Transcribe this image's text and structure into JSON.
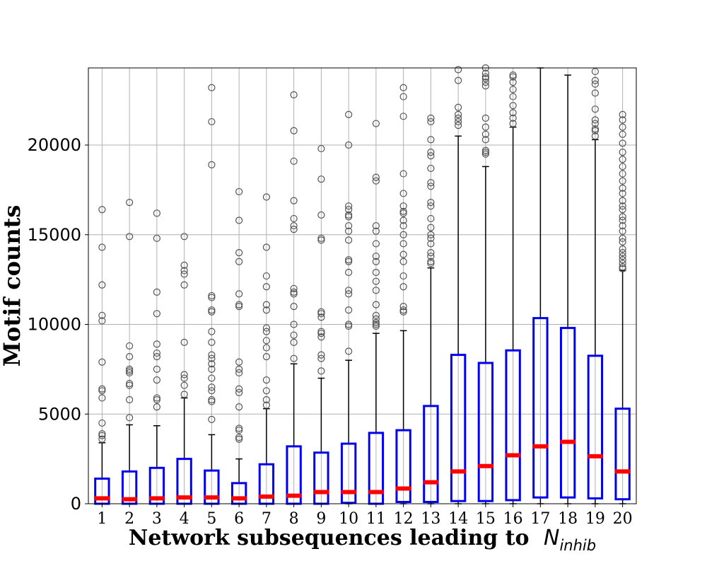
{
  "chart_data": {
    "type": "box",
    "title": "",
    "xlabel": "Network subsequences leading to",
    "xlabel_math": "N",
    "xlabel_subscript": "inhib",
    "ylabel": "Motif counts",
    "ylim": [
      0,
      24300
    ],
    "y_ticks": [
      0,
      5000,
      10000,
      15000,
      20000
    ],
    "y_tick_labels": [
      "0",
      "5000",
      "10000",
      "15000",
      "20000"
    ],
    "grid": true,
    "categories": [
      "1",
      "2",
      "3",
      "4",
      "5",
      "6",
      "7",
      "8",
      "9",
      "10",
      "11",
      "12",
      "13",
      "14",
      "15",
      "16",
      "17",
      "18",
      "19",
      "20"
    ],
    "colors": {
      "box": "#0000ee",
      "median": "#ff0000",
      "whisker": "#000000",
      "flier": "#555555",
      "grid": "#b0b0b0"
    },
    "boxes": [
      {
        "q1": 0,
        "median": 300,
        "q3": 1400,
        "whisker_low": 0,
        "whisker_high": 3400,
        "fliers": [
          3600,
          3800,
          3900,
          4500,
          5900,
          6300,
          6400,
          7900,
          10200,
          10500,
          12200,
          14300,
          16400
        ]
      },
      {
        "q1": 0,
        "median": 250,
        "q3": 1800,
        "whisker_low": 0,
        "whisker_high": 4400,
        "fliers": [
          4800,
          5800,
          6600,
          6700,
          7300,
          7400,
          7500,
          8200,
          8800,
          14900,
          16800
        ]
      },
      {
        "q1": 0,
        "median": 300,
        "q3": 2000,
        "whisker_low": 0,
        "whisker_high": 4350,
        "fliers": [
          5400,
          5800,
          5900,
          6900,
          7500,
          8200,
          8400,
          8900,
          10600,
          11800,
          14800,
          16200
        ]
      },
      {
        "q1": 0,
        "median": 350,
        "q3": 2500,
        "whisker_low": 0,
        "whisker_high": 5900,
        "fliers": [
          6100,
          6600,
          7000,
          7200,
          9000,
          12200,
          12800,
          13000,
          13300,
          14900
        ]
      },
      {
        "q1": 0,
        "median": 350,
        "q3": 1850,
        "whisker_low": 0,
        "whisker_high": 3850,
        "fliers": [
          4700,
          5700,
          5800,
          6300,
          6500,
          7000,
          7500,
          7800,
          8100,
          8300,
          9000,
          9600,
          10700,
          10800,
          11500,
          11600,
          18900,
          21300,
          23200
        ]
      },
      {
        "q1": 0,
        "median": 300,
        "q3": 1150,
        "whisker_low": 0,
        "whisker_high": 2500,
        "fliers": [
          3600,
          3700,
          4100,
          4200,
          5400,
          6200,
          6400,
          7300,
          7500,
          7900,
          11000,
          11100,
          11700,
          13500,
          14000,
          15800,
          17400
        ]
      },
      {
        "q1": 0,
        "median": 400,
        "q3": 2200,
        "whisker_low": 0,
        "whisker_high": 5300,
        "fliers": [
          5500,
          5800,
          6300,
          6900,
          8200,
          8700,
          9100,
          9600,
          9800,
          10800,
          11100,
          12100,
          12700,
          14300,
          17100
        ]
      },
      {
        "q1": 0,
        "median": 450,
        "q3": 3200,
        "whisker_low": 0,
        "whisker_high": 7800,
        "fliers": [
          8100,
          9000,
          9400,
          10000,
          11000,
          11700,
          11800,
          12000,
          15300,
          15500,
          15900,
          16900,
          19100,
          20800,
          22800
        ]
      },
      {
        "q1": 0,
        "median": 650,
        "q3": 2850,
        "whisker_low": 0,
        "whisker_high": 7000,
        "fliers": [
          7400,
          8100,
          8300,
          9300,
          9500,
          9600,
          10400,
          10600,
          10700,
          14700,
          14800,
          16100,
          18100,
          19800
        ]
      },
      {
        "q1": 50,
        "median": 650,
        "q3": 3350,
        "whisker_low": 0,
        "whisker_high": 8000,
        "fliers": [
          8500,
          9900,
          10000,
          10800,
          11700,
          11900,
          12900,
          13500,
          13600,
          14700,
          15200,
          15500,
          16000,
          16100,
          16400,
          16600,
          20000,
          21700
        ]
      },
      {
        "q1": 0,
        "median": 650,
        "q3": 3950,
        "whisker_low": 0,
        "whisker_high": 9500,
        "fliers": [
          9900,
          10000,
          10100,
          10300,
          10500,
          11100,
          11900,
          12400,
          12900,
          13500,
          13800,
          14500,
          15200,
          15500,
          18000,
          18200,
          21200
        ]
      },
      {
        "q1": 100,
        "median": 850,
        "q3": 4100,
        "whisker_low": 0,
        "whisker_high": 9650,
        "fliers": [
          10700,
          10800,
          11000,
          12100,
          12700,
          13500,
          13900,
          14500,
          15000,
          15500,
          15800,
          16200,
          16300,
          16600,
          17300,
          18400,
          21600,
          22700,
          23200
        ]
      },
      {
        "q1": 100,
        "median": 1200,
        "q3": 5450,
        "whisker_low": 0,
        "whisker_high": 13150,
        "fliers": [
          13400,
          13500,
          13800,
          14000,
          14500,
          14800,
          15000,
          15400,
          15900,
          16600,
          16800,
          17700,
          17900,
          18700,
          19400,
          19600,
          20300,
          21300,
          21500
        ]
      },
      {
        "q1": 150,
        "median": 1800,
        "q3": 8300,
        "whisker_low": 0,
        "whisker_high": 20500,
        "fliers": [
          21100,
          21300,
          21500,
          21700,
          22100,
          23600,
          24200
        ]
      },
      {
        "q1": 150,
        "median": 2100,
        "q3": 7850,
        "whisker_low": 0,
        "whisker_high": 18800,
        "fliers": [
          19500,
          19600,
          19700,
          20300,
          20600,
          21000,
          21500,
          23300,
          23500,
          23700,
          23800,
          24000,
          24300
        ]
      },
      {
        "q1": 200,
        "median": 2700,
        "q3": 8550,
        "whisker_low": 0,
        "whisker_high": 21000,
        "fliers": [
          21200,
          21500,
          21800,
          22200,
          22700,
          23100,
          23500,
          23800,
          23900
        ]
      },
      {
        "q1": 350,
        "median": 3200,
        "q3": 10350,
        "whisker_low": 0,
        "whisker_high": 24300,
        "fliers": []
      },
      {
        "q1": 350,
        "median": 3450,
        "q3": 9800,
        "whisker_low": 0,
        "whisker_high": 23900,
        "fliers": []
      },
      {
        "q1": 300,
        "median": 2650,
        "q3": 8250,
        "whisker_low": 0,
        "whisker_high": 20300,
        "fliers": [
          20500,
          20800,
          20900,
          21200,
          21400,
          22000,
          22900,
          23400,
          23600,
          24100
        ]
      },
      {
        "q1": 250,
        "median": 1800,
        "q3": 5300,
        "whisker_low": 0,
        "whisker_high": 13000,
        "fliers": [
          13100,
          13200,
          13400,
          13600,
          13800,
          14000,
          14200,
          14600,
          14800,
          15200,
          15500,
          15800,
          16000,
          16400,
          16600,
          16900,
          17300,
          17600,
          18000,
          18400,
          18800,
          19200,
          19600,
          20100,
          20600,
          21000,
          21400,
          21700
        ]
      }
    ]
  }
}
